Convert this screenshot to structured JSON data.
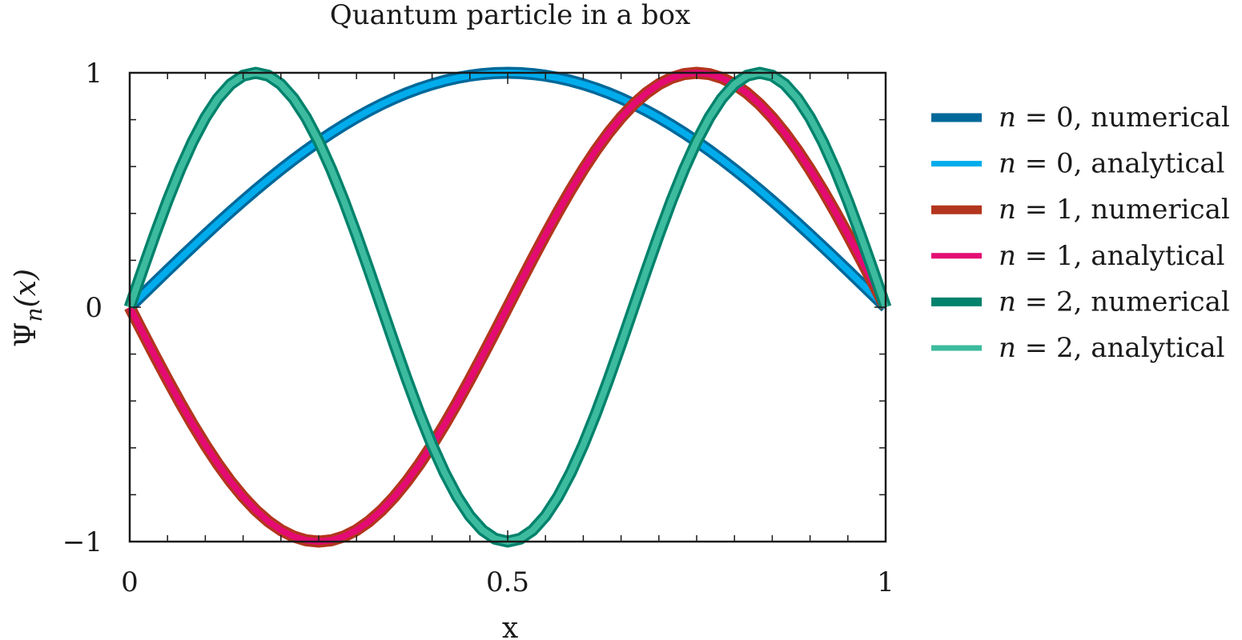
{
  "chart_data": {
    "type": "line",
    "title": "Quantum particle in a box",
    "xlabel": "x",
    "ylabel": "Ψn(x)",
    "ylabel_parts": {
      "symbol": "Ψ",
      "subscript": "n",
      "arg": "(x)"
    },
    "xlim": [
      0,
      1
    ],
    "ylim": [
      -1,
      1
    ],
    "xticks": [
      {
        "value": 0,
        "label": "0"
      },
      {
        "value": 0.5,
        "label": "0.5"
      },
      {
        "value": 1,
        "label": "1"
      }
    ],
    "yticks": [
      {
        "value": -1,
        "label": "−1"
      },
      {
        "value": 0,
        "label": "0"
      },
      {
        "value": 1,
        "label": "1"
      }
    ],
    "x_minor_step": 0.05,
    "y_minor_step": 0.2,
    "grid": false,
    "legend_position": "right",
    "series": [
      {
        "name": "n = 0, numerical",
        "legend_n": "0",
        "legend_kind": "numerical",
        "color": "#00689a",
        "kind": "numerical",
        "mode": 1,
        "sign": 1
      },
      {
        "name": "n = 0, analytical",
        "legend_n": "0",
        "legend_kind": "analytical",
        "color": "#00acec",
        "kind": "analytical",
        "mode": 1,
        "sign": 1
      },
      {
        "name": "n = 1, numerical",
        "legend_n": "1",
        "legend_kind": "numerical",
        "color": "#b3351d",
        "kind": "numerical",
        "mode": 2,
        "sign": -1
      },
      {
        "name": "n = 1, analytical",
        "legend_n": "1",
        "legend_kind": "analytical",
        "color": "#e40b72",
        "kind": "analytical",
        "mode": 2,
        "sign": -1
      },
      {
        "name": "n = 2, numerical",
        "legend_n": "2",
        "legend_kind": "numerical",
        "color": "#00826c",
        "kind": "numerical",
        "mode": 3,
        "sign": 1
      },
      {
        "name": "n = 2, analytical",
        "legend_n": "2",
        "legend_kind": "analytical",
        "color": "#3dbb9e",
        "kind": "analytical",
        "mode": 3,
        "sign": 1
      }
    ]
  }
}
